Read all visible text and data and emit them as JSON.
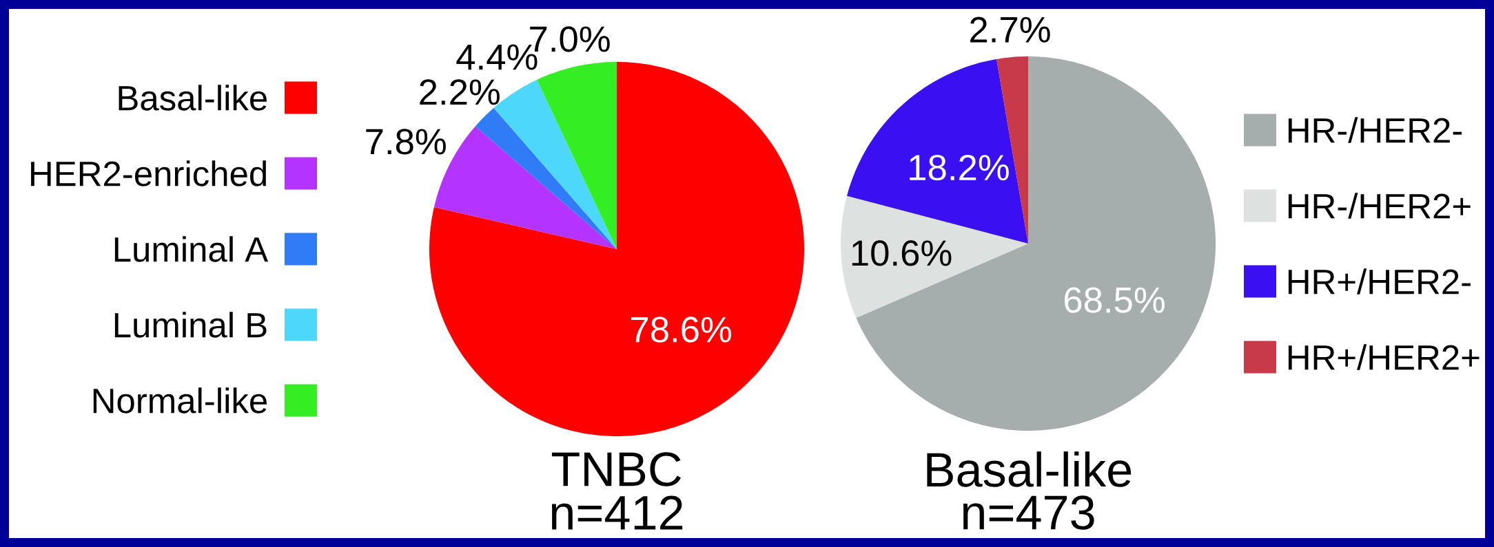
{
  "chart_data": [
    {
      "type": "pie",
      "title": "TNBC",
      "subtitle": "n=412",
      "legend": "left",
      "categories": [
        "Basal-like",
        "HER2-enriched",
        "Luminal A",
        "Luminal B",
        "Normal-like"
      ],
      "values": [
        78.6,
        7.8,
        2.2,
        4.4,
        7.0
      ],
      "value_labels": [
        "78.6%",
        "7.8%",
        "2.2%",
        "4.4%",
        "7.0%"
      ],
      "colors": [
        "#ff0000",
        "#b533ff",
        "#2f7cf6",
        "#4dd8fb",
        "#33ee22"
      ]
    },
    {
      "type": "pie",
      "title": "Basal-like",
      "subtitle": "n=473",
      "legend": "right",
      "categories": [
        "HR-/HER2-",
        "HR-/HER2+",
        "HR+/HER2-",
        "HR+/HER2+"
      ],
      "values": [
        68.5,
        10.6,
        18.2,
        2.7
      ],
      "value_labels": [
        "68.5%",
        "10.6%",
        "18.2%",
        "2.7%"
      ],
      "colors": [
        "#a5aeac",
        "#dde1e0",
        "#3a10f2",
        "#c8394a"
      ]
    }
  ]
}
